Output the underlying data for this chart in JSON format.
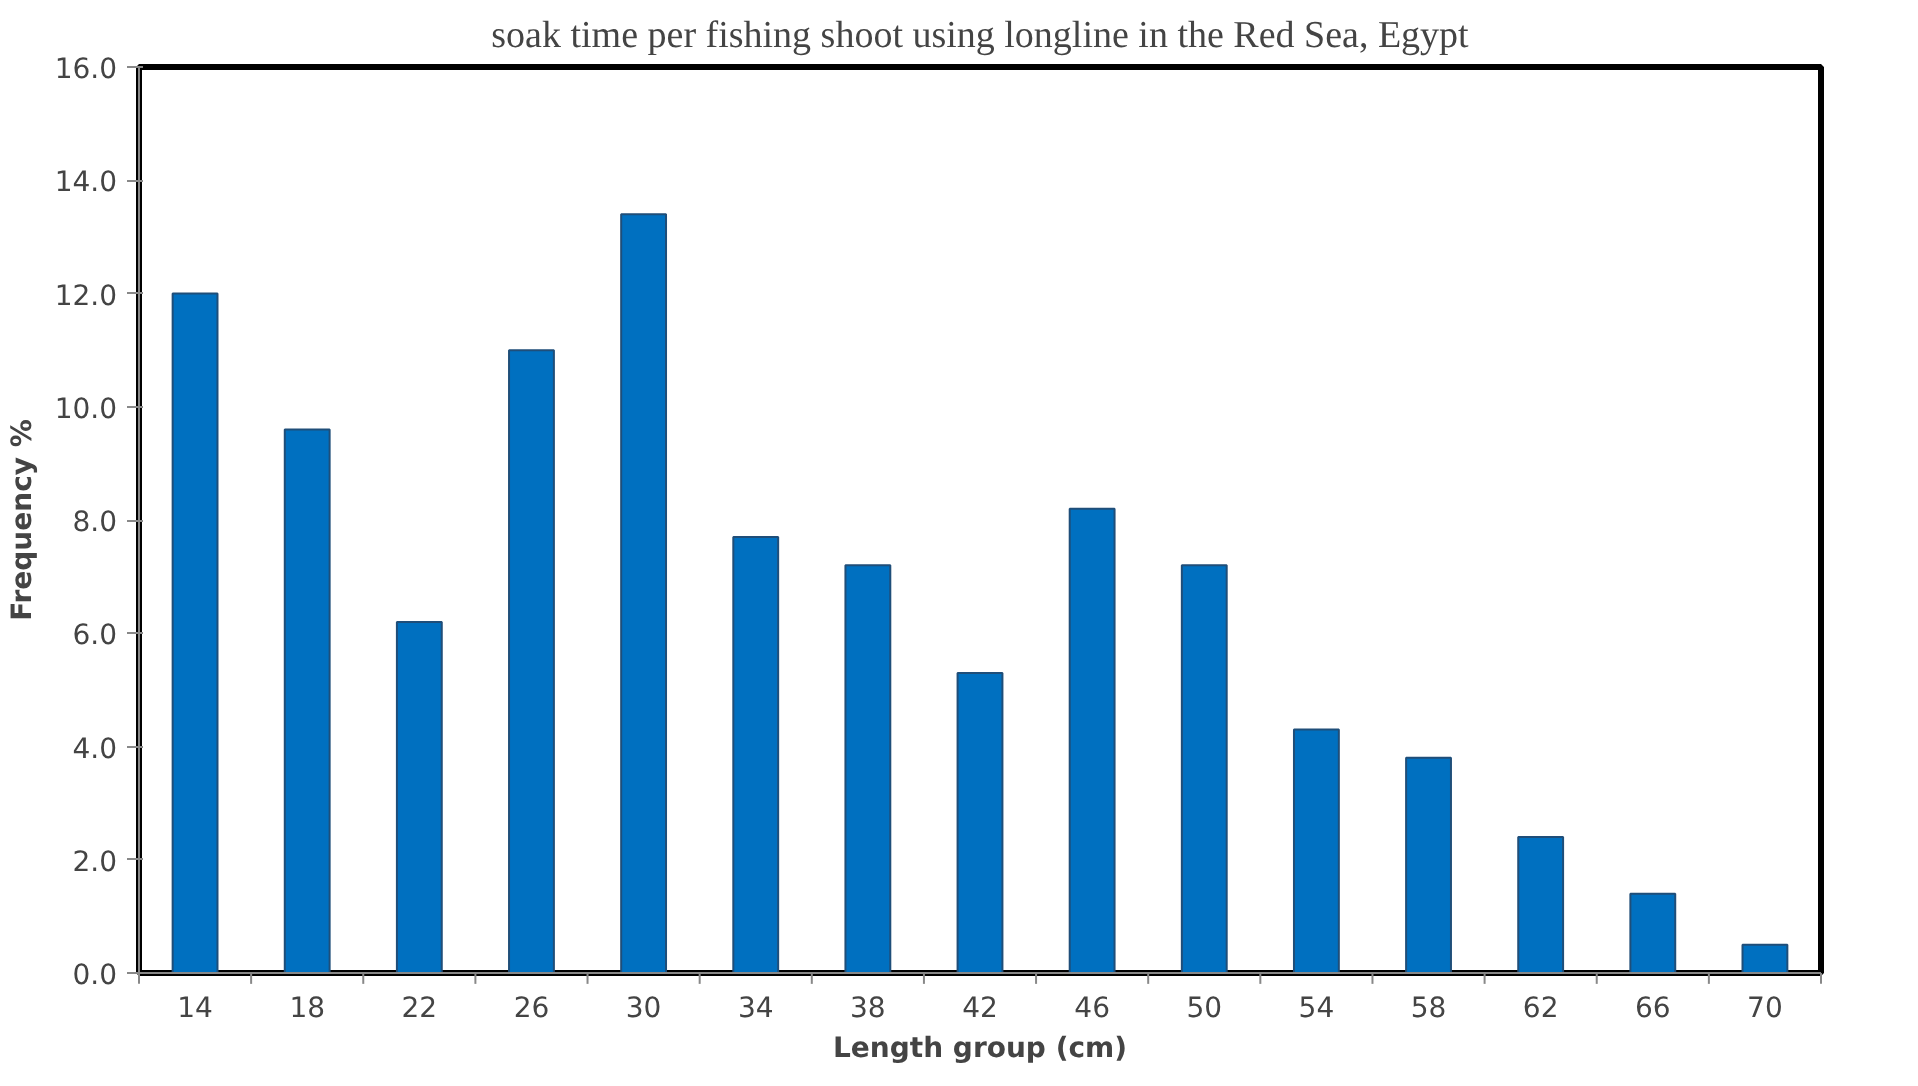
{
  "chart_data": {
    "type": "bar",
    "title": "soak time per fishing shoot using longline in the Red Sea, Egypt",
    "xlabel": "Length group (cm)",
    "ylabel": "Frequency %",
    "categories": [
      "14",
      "18",
      "22",
      "26",
      "30",
      "34",
      "38",
      "42",
      "46",
      "50",
      "54",
      "58",
      "62",
      "66",
      "70"
    ],
    "values": [
      12.0,
      9.6,
      6.2,
      11.0,
      13.4,
      7.7,
      7.2,
      5.3,
      8.2,
      7.2,
      4.3,
      3.8,
      2.4,
      1.4,
      0.5
    ],
    "color": "#0070c0",
    "ylim": [
      0,
      16
    ],
    "yticks": [
      {
        "value": 0,
        "label": "0.0"
      },
      {
        "value": 2,
        "label": "2.0"
      },
      {
        "value": 4,
        "label": "4.0"
      },
      {
        "value": 6,
        "label": "6.0"
      },
      {
        "value": 8,
        "label": "8.0"
      },
      {
        "value": 10,
        "label": "10.0"
      },
      {
        "value": 12,
        "label": "12.0"
      },
      {
        "value": 14,
        "label": "14.0"
      },
      {
        "value": 16,
        "label": "16.0"
      }
    ],
    "grid": false
  }
}
